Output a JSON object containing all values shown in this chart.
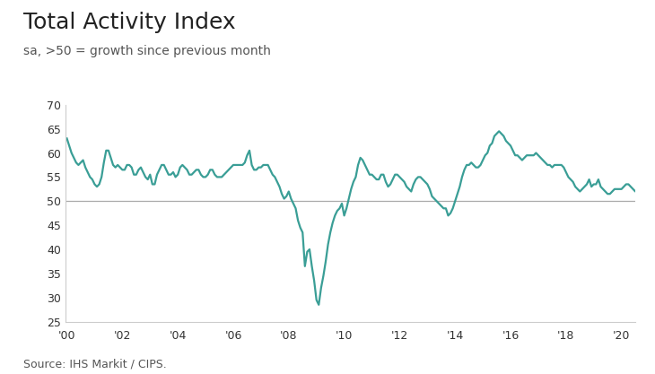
{
  "title": "Total Activity Index",
  "subtitle": "sa, >50 = growth since previous month",
  "source": "Source: IHS Markit / CIPS.",
  "line_color": "#3a9e96",
  "reference_line": 50,
  "reference_color": "#aaaaaa",
  "ylim": [
    25,
    70
  ],
  "yticks": [
    25,
    30,
    35,
    40,
    45,
    50,
    55,
    60,
    65,
    70
  ],
  "background_color": "#ffffff",
  "title_fontsize": 18,
  "subtitle_fontsize": 10,
  "source_fontsize": 9,
  "line_width": 1.6,
  "values": [
    63.0,
    61.5,
    60.0,
    59.0,
    58.0,
    57.5,
    58.0,
    58.5,
    57.0,
    56.0,
    55.0,
    54.5,
    53.5,
    53.0,
    53.5,
    55.0,
    58.0,
    60.5,
    60.5,
    59.0,
    57.5,
    57.0,
    57.5,
    57.0,
    56.5,
    56.5,
    57.5,
    57.5,
    57.0,
    55.5,
    55.5,
    56.5,
    57.0,
    56.0,
    55.0,
    54.5,
    55.5,
    53.5,
    53.5,
    55.5,
    56.5,
    57.5,
    57.5,
    56.5,
    55.5,
    55.5,
    56.0,
    55.0,
    55.5,
    57.0,
    57.5,
    57.0,
    56.5,
    55.5,
    55.5,
    56.0,
    56.5,
    56.5,
    55.5,
    55.0,
    55.0,
    55.5,
    56.5,
    56.5,
    55.5,
    55.0,
    55.0,
    55.0,
    55.5,
    56.0,
    56.5,
    57.0,
    57.5,
    57.5,
    57.5,
    57.5,
    57.5,
    58.0,
    59.5,
    60.5,
    57.5,
    56.5,
    56.5,
    57.0,
    57.0,
    57.5,
    57.5,
    57.5,
    56.5,
    55.5,
    55.0,
    54.0,
    53.0,
    51.5,
    50.5,
    51.0,
    52.0,
    50.5,
    49.5,
    48.5,
    46.0,
    44.5,
    43.5,
    36.5,
    39.5,
    40.0,
    36.5,
    33.5,
    29.5,
    28.5,
    32.0,
    34.5,
    37.5,
    41.0,
    43.5,
    45.5,
    47.0,
    48.0,
    48.5,
    49.5,
    47.0,
    48.5,
    50.5,
    52.5,
    54.0,
    55.0,
    57.5,
    59.0,
    58.5,
    57.5,
    56.5,
    55.5,
    55.5,
    55.0,
    54.5,
    54.5,
    55.5,
    55.5,
    54.0,
    53.0,
    53.5,
    54.5,
    55.5,
    55.5,
    55.0,
    54.5,
    54.0,
    53.0,
    52.5,
    52.0,
    53.5,
    54.5,
    55.0,
    55.0,
    54.5,
    54.0,
    53.5,
    52.5,
    51.0,
    50.5,
    50.0,
    49.5,
    49.0,
    48.5,
    48.5,
    47.0,
    47.5,
    48.5,
    50.0,
    51.5,
    53.0,
    55.0,
    56.5,
    57.5,
    57.5,
    58.0,
    57.5,
    57.0,
    57.0,
    57.5,
    58.5,
    59.5,
    60.0,
    61.5,
    62.0,
    63.5,
    64.0,
    64.5,
    64.0,
    63.5,
    62.5,
    62.0,
    61.5,
    60.5,
    59.5,
    59.5,
    59.0,
    58.5,
    59.0,
    59.5,
    59.5,
    59.5,
    59.5,
    60.0,
    59.5,
    59.0,
    58.5,
    58.0,
    57.5,
    57.5,
    57.0,
    57.5,
    57.5,
    57.5,
    57.5,
    57.0,
    56.0,
    55.0,
    54.5,
    54.0,
    53.0,
    52.5,
    52.0,
    52.5,
    53.0,
    53.5,
    54.5,
    53.0,
    53.5,
    53.5,
    54.5,
    53.0,
    52.5,
    52.0,
    51.5,
    51.5,
    52.0,
    52.5,
    52.5,
    52.5,
    52.5,
    53.0,
    53.5,
    53.5,
    53.0,
    52.5,
    52.0,
    52.5,
    53.0,
    53.0,
    53.5,
    53.5,
    53.5,
    53.5,
    52.5,
    52.5,
    52.0,
    52.5,
    52.5,
    51.5,
    51.5,
    51.5,
    52.0,
    51.5,
    52.0,
    52.5,
    53.0,
    53.5,
    53.5,
    53.5,
    54.5,
    55.0,
    54.5,
    54.0,
    53.5,
    53.0,
    53.0,
    52.5,
    52.0,
    51.5,
    52.0,
    52.5,
    52.5,
    52.0,
    52.0,
    51.5,
    51.0,
    50.5,
    50.5,
    51.0,
    51.5,
    52.0,
    52.5,
    52.0,
    51.5,
    51.5,
    52.0,
    52.5,
    53.0,
    53.0,
    52.5,
    52.0,
    51.5,
    51.0,
    51.0,
    51.5,
    51.5,
    51.0,
    50.5,
    50.0,
    49.5,
    50.0,
    50.5,
    49.5,
    48.5,
    47.5,
    46.5,
    46.0,
    45.5,
    47.0,
    50.0,
    50.5,
    49.5,
    48.5,
    48.0,
    47.5,
    47.5,
    47.5,
    47.5,
    47.5,
    47.5,
    48.0,
    48.0,
    48.0,
    47.5,
    47.5,
    47.5,
    47.0,
    47.0,
    47.0,
    46.5,
    46.5,
    47.0,
    47.0,
    47.0,
    46.5,
    46.0,
    45.5,
    45.0,
    45.5,
    46.5,
    46.5,
    45.5,
    44.5,
    44.0,
    44.0,
    44.0,
    44.5,
    44.5,
    44.5,
    45.0,
    45.5,
    45.5,
    45.0,
    44.5,
    44.0,
    43.5,
    43.5,
    44.0,
    44.0,
    44.5,
    45.0,
    47.5,
    46.5,
    45.5,
    45.0,
    44.5,
    44.5,
    44.5,
    44.5,
    44.0,
    44.0,
    44.0,
    43.5
  ],
  "xtick_years": [
    2000,
    2002,
    2004,
    2006,
    2008,
    2010,
    2012,
    2014,
    2016,
    2018,
    2020
  ],
  "xtick_labels": [
    "'00",
    "'02",
    "'04",
    "'06",
    "'08",
    "'10",
    "'12",
    "'14",
    "'16",
    "'18",
    "'20"
  ],
  "xlim_start": 1999.95,
  "xlim_end": 2020.5
}
